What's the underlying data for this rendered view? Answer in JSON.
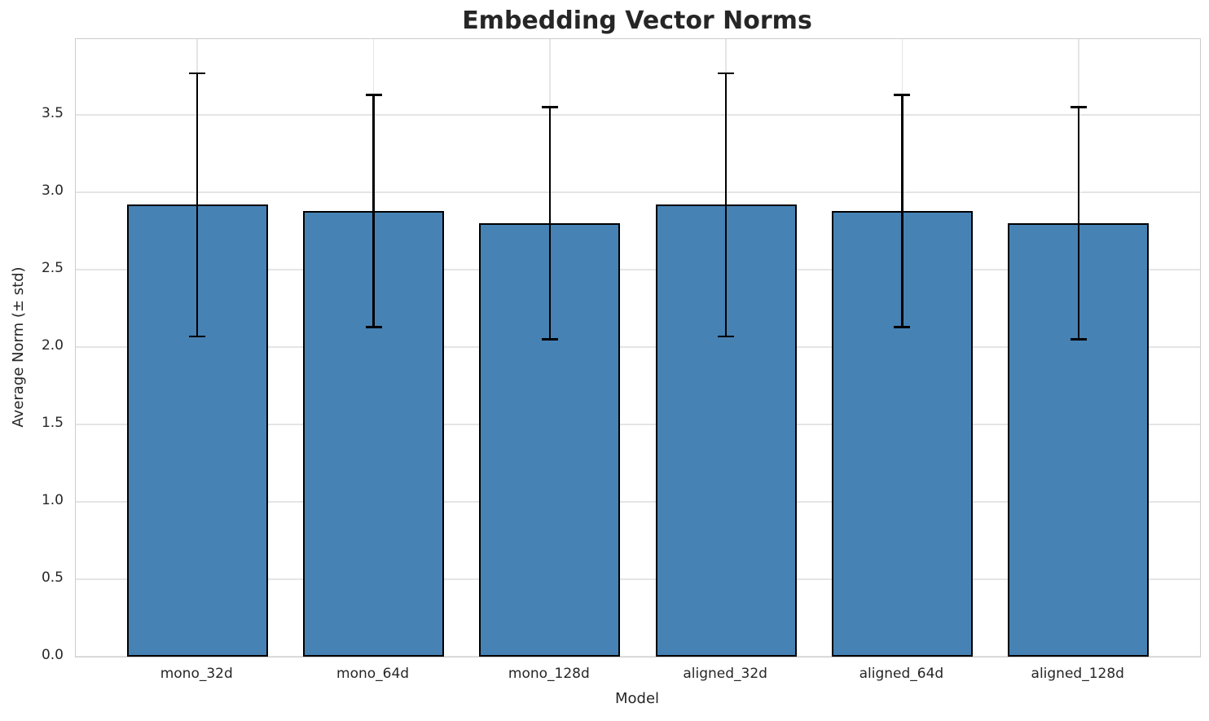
{
  "chart_data": {
    "type": "bar",
    "title": "Embedding Vector Norms",
    "xlabel": "Model",
    "ylabel": "Average Norm (± std)",
    "categories": [
      "mono_32d",
      "mono_64d",
      "mono_128d",
      "aligned_32d",
      "aligned_64d",
      "aligned_128d"
    ],
    "values": [
      2.92,
      2.88,
      2.8,
      2.92,
      2.88,
      2.8
    ],
    "errors": [
      0.85,
      0.75,
      0.75,
      0.85,
      0.75,
      0.75
    ],
    "ylim": [
      0,
      3.99
    ],
    "yticks": [
      0.0,
      0.5,
      1.0,
      1.5,
      2.0,
      2.5,
      3.0,
      3.5
    ],
    "grid": "on",
    "legend": "none",
    "bar_color": "#4682B4",
    "bar_edge_color": "#000000",
    "error_color": "#000000",
    "grid_color": "#e5e5e5",
    "spine_color": "#cccccc",
    "text_color": "#262626",
    "background_color": "#ffffff"
  }
}
